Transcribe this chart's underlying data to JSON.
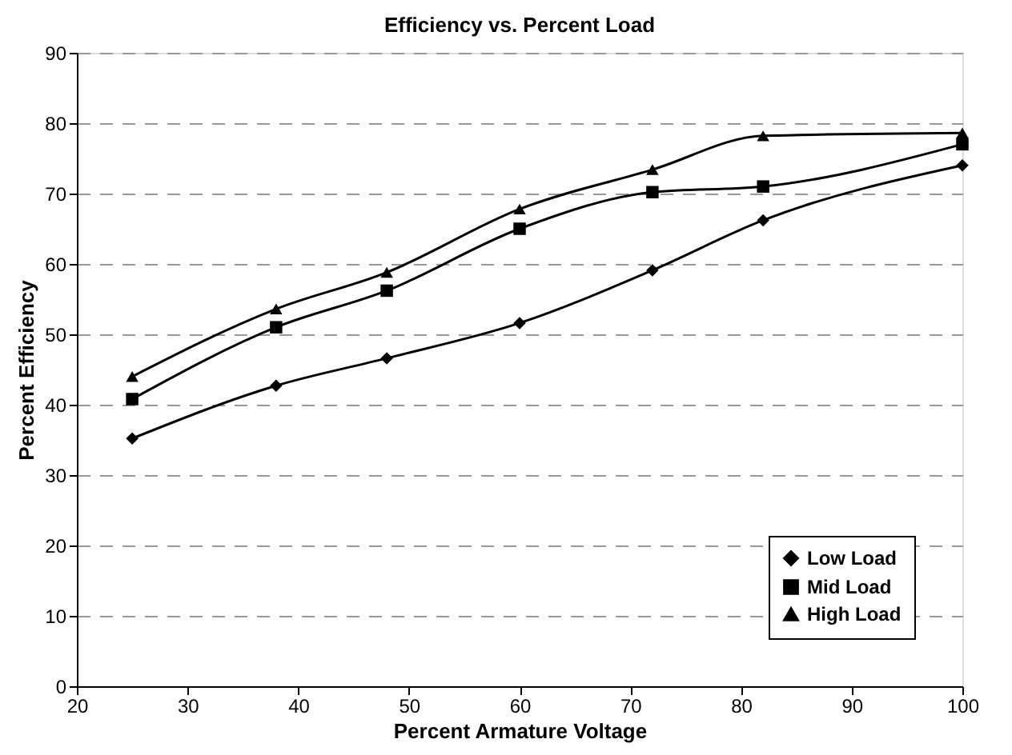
{
  "chart_data": {
    "type": "line",
    "title": "Efficiency vs. Percent Load",
    "xlabel": "Percent Armature Voltage",
    "ylabel": "Percent Efficiency",
    "x": [
      25,
      38,
      48,
      60,
      72,
      82,
      100
    ],
    "series": [
      {
        "name": "Low Load",
        "color": "#000000",
        "marker": "diamond",
        "values": [
          35.2,
          42.7,
          46.6,
          51.6,
          59.1,
          66.2,
          74
        ]
      },
      {
        "name": "Mid Load",
        "color": "#000000",
        "marker": "square",
        "values": [
          40.8,
          51,
          56.2,
          65,
          70.2,
          71,
          77
        ]
      },
      {
        "name": "High Load",
        "color": "#000000",
        "marker": "triangle",
        "values": [
          44,
          53.6,
          58.8,
          67.8,
          73.4,
          78.2,
          78.6
        ]
      }
    ],
    "xlim": [
      20,
      100
    ],
    "xticks": [
      20,
      30,
      40,
      50,
      60,
      70,
      80,
      90,
      100
    ],
    "ylim": [
      0,
      90
    ],
    "yticks": [
      0,
      10,
      20,
      30,
      40,
      50,
      60,
      70,
      80,
      90
    ],
    "grid": "y",
    "legend": "bottom right",
    "line_style": "solid"
  }
}
